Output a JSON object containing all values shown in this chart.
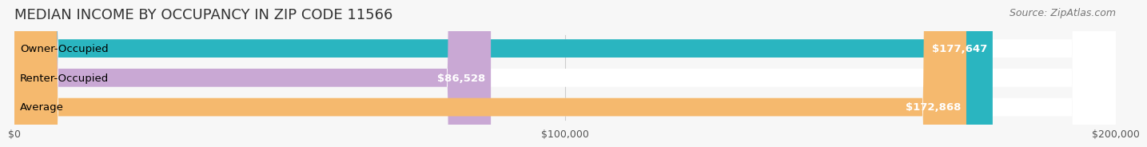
{
  "title": "MEDIAN INCOME BY OCCUPANCY IN ZIP CODE 11566",
  "source": "Source: ZipAtlas.com",
  "categories": [
    "Owner-Occupied",
    "Renter-Occupied",
    "Average"
  ],
  "values": [
    177647,
    86528,
    172868
  ],
  "bar_colors": [
    "#2ab5c0",
    "#c9a8d4",
    "#f5b96e"
  ],
  "bar_bg_color": "#f0f0f0",
  "value_labels": [
    "$177,647",
    "$86,528",
    "$172,868"
  ],
  "xlim": [
    0,
    200000
  ],
  "xticks": [
    0,
    100000,
    200000
  ],
  "xtick_labels": [
    "$0",
    "$100,000",
    "$200,000"
  ],
  "title_fontsize": 13,
  "source_fontsize": 9,
  "label_fontsize": 9.5,
  "value_fontsize": 9.5,
  "tick_fontsize": 9,
  "background_color": "#f7f7f7"
}
